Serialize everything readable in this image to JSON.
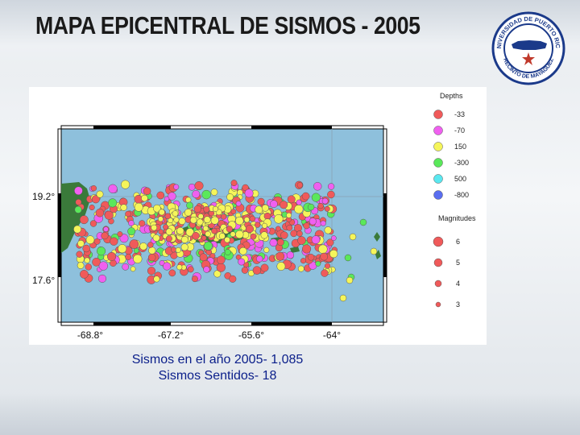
{
  "title": "MAPA EPICENTRAL DE SISMOS - 2005",
  "caption": {
    "line1": "Sismos en el año 2005- 1,085",
    "line2": "Sismos Sentidos- 18"
  },
  "map": {
    "lat_labels": [
      "19.2°",
      "17.6°"
    ],
    "lon_labels": [
      "-68.8°",
      "-67.2°",
      "-65.6°",
      "-64°"
    ],
    "legend": {
      "depths_title": "Depths",
      "depths": [
        {
          "label": "-33",
          "color": "#f05a5a"
        },
        {
          "label": "-70",
          "color": "#f060f0"
        },
        {
          "label": "150",
          "color": "#f5f55a"
        },
        {
          "label": "-300",
          "color": "#5ae85a"
        },
        {
          "label": "500",
          "color": "#5ae8f0"
        },
        {
          "label": "-800",
          "color": "#5a6ef0"
        }
      ],
      "magnitudes_title": "Magnitudes",
      "magnitudes": [
        {
          "label": "6",
          "size": 6
        },
        {
          "label": "5",
          "size": 5
        },
        {
          "label": "4",
          "size": 4
        },
        {
          "label": "3",
          "size": 3
        }
      ]
    },
    "colors": {
      "ocean": "#8ec0dc",
      "land": "#3a7a3a",
      "frame": "#000000"
    }
  },
  "seal": {
    "text_top": "UNIVERSIDAD DE PUERTO RICO",
    "text_bottom": "RECINTO DE MAYAGÜEZ"
  }
}
